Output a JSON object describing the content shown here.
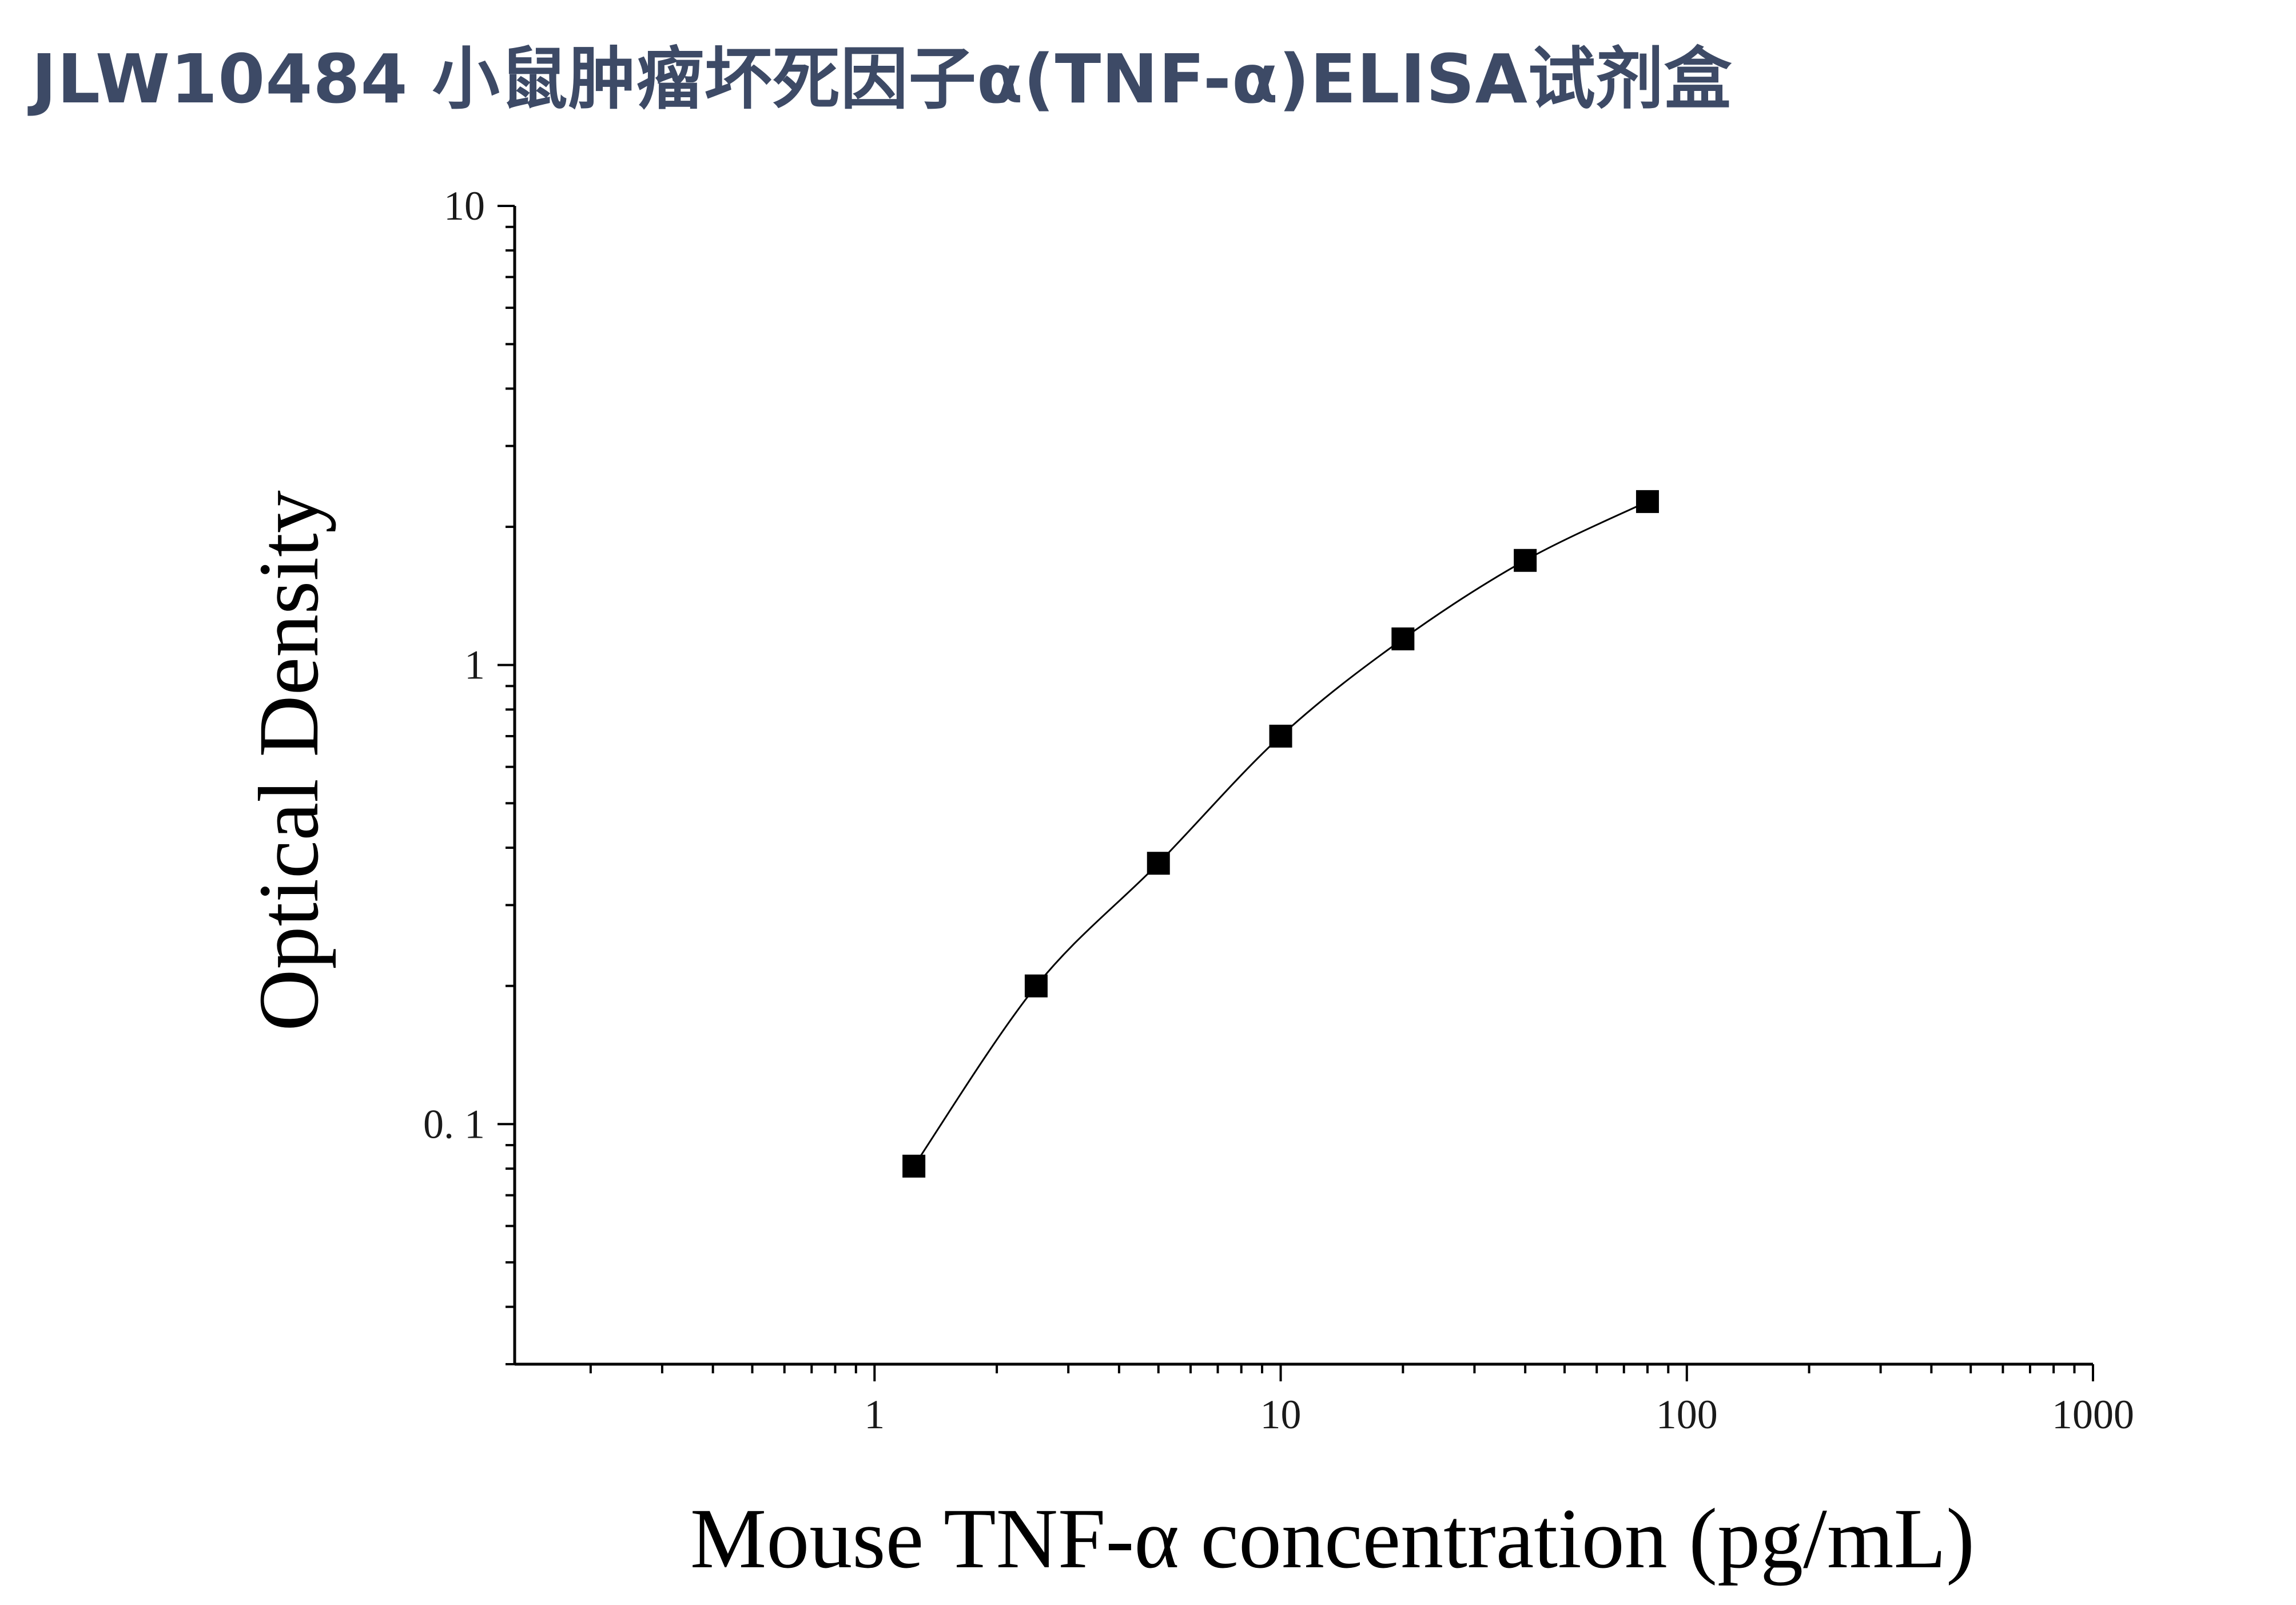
{
  "chart_data": {
    "type": "scatter",
    "title": "JLW10484 小鼠肿瘤坏死因子α(TNF-α)ELISA试剂盒",
    "xlabel": "Mouse TNF-α concentration (pg/mL)",
    "ylabel": "Optical Density",
    "x_scale": "log",
    "y_scale": "log",
    "xlim": [
      0.13,
      1000
    ],
    "ylim": [
      0.03,
      10
    ],
    "x_ticks": [
      {
        "value": 1,
        "label": "1"
      },
      {
        "value": 10,
        "label": "10"
      },
      {
        "value": 100,
        "label": "100"
      },
      {
        "value": 1000,
        "label": "1000"
      }
    ],
    "y_ticks": [
      {
        "value": 0.1,
        "label": "0. 1"
      },
      {
        "value": 1,
        "label": "1"
      },
      {
        "value": 10,
        "label": "10"
      }
    ],
    "grid": false,
    "series": [
      {
        "marker": "square",
        "fit_line": true,
        "color": "#000000",
        "points": [
          {
            "x": 1.25,
            "y": 0.081
          },
          {
            "x": 2.5,
            "y": 0.2
          },
          {
            "x": 5,
            "y": 0.37
          },
          {
            "x": 10,
            "y": 0.7
          },
          {
            "x": 20,
            "y": 1.14
          },
          {
            "x": 40,
            "y": 1.69
          },
          {
            "x": 80,
            "y": 2.27
          }
        ]
      }
    ]
  }
}
